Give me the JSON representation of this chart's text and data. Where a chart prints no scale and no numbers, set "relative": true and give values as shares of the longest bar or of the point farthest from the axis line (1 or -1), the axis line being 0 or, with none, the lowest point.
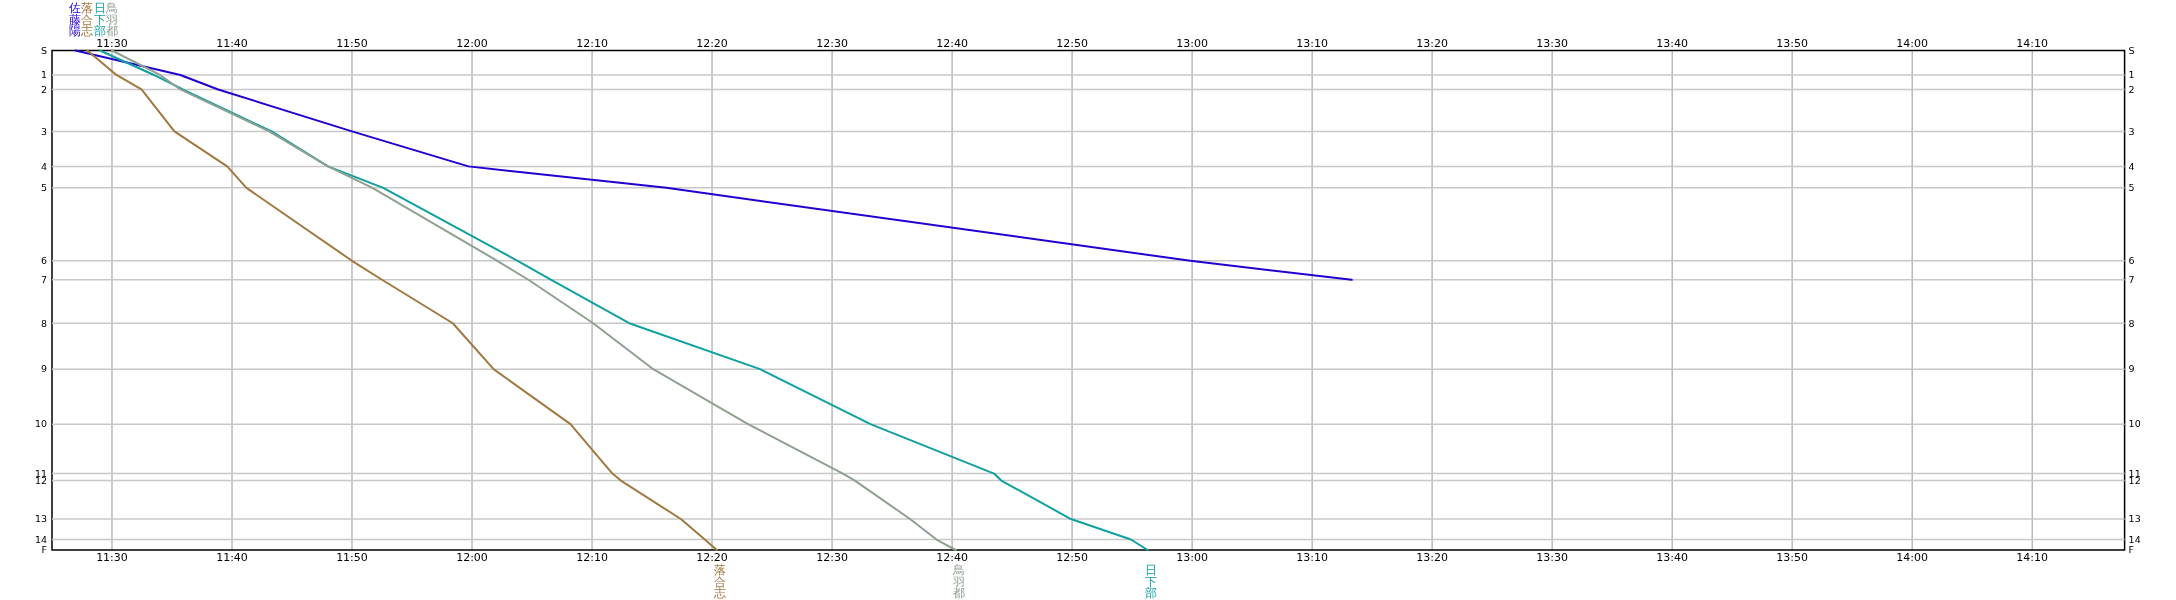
{
  "chart_data": {
    "type": "line",
    "grid": "x",
    "relative": true,
    "line_style": "solid",
    "xlim": [
      11.4167,
      14.295
    ],
    "xticks": [
      {
        "value": 11.5,
        "label": "11:30"
      },
      {
        "value": 11.6667,
        "label": "11:40"
      },
      {
        "value": 11.8333,
        "label": "11:50"
      },
      {
        "value": 12,
        "label": "12:00"
      },
      {
        "value": 12.1667,
        "label": "12:10"
      },
      {
        "value": 12.3333,
        "label": "12:20"
      },
      {
        "value": 12.5,
        "label": "12:30"
      },
      {
        "value": 12.6667,
        "label": "12:40"
      },
      {
        "value": 12.8333,
        "label": "12:50"
      },
      {
        "value": 13,
        "label": "13:00"
      },
      {
        "value": 13.1667,
        "label": "13:10"
      },
      {
        "value": 13.3333,
        "label": "13:20"
      },
      {
        "value": 13.5,
        "label": "13:30"
      },
      {
        "value": 13.6667,
        "label": "13:40"
      },
      {
        "value": 13.8333,
        "label": "13:50"
      },
      {
        "value": 14,
        "label": "14:00"
      },
      {
        "value": 14.1667,
        "label": "14:10"
      }
    ],
    "x2lim": [
      11.4167,
      14.295
    ],
    "x2ticks": [
      {
        "value": 11.5,
        "label": "11:30"
      },
      {
        "value": 11.6667,
        "label": "11:40"
      },
      {
        "value": 11.8333,
        "label": "11:50"
      },
      {
        "value": 12,
        "label": "12:00"
      },
      {
        "value": 12.1667,
        "label": "12:10"
      },
      {
        "value": 12.3333,
        "label": "12:20"
      },
      {
        "value": 12.5,
        "label": "12:30"
      },
      {
        "value": 12.6667,
        "label": "12:40"
      },
      {
        "value": 12.8333,
        "label": "12:50"
      },
      {
        "value": 13,
        "label": "13:00"
      },
      {
        "value": 13.1667,
        "label": "13:10"
      },
      {
        "value": 13.3333,
        "label": "13:20"
      },
      {
        "value": 13.5,
        "label": "13:30"
      },
      {
        "value": 13.6667,
        "label": "13:40"
      },
      {
        "value": 13.8333,
        "label": "13:50"
      },
      {
        "value": 14,
        "label": "14:00"
      },
      {
        "value": 14.1667,
        "label": "14:10"
      }
    ],
    "ref_lines": [
      {
        "axis": "y",
        "value": -0.049,
        "color": "#c8c8c8"
      },
      {
        "axis": "y",
        "value": -0.078,
        "color": "#c8c8c8"
      },
      {
        "axis": "y",
        "value": -0.162,
        "color": "#c8c8c8"
      },
      {
        "axis": "y",
        "value": -0.232,
        "color": "#c8c8c8"
      },
      {
        "axis": "y",
        "value": -0.275,
        "color": "#c8c8c8"
      },
      {
        "axis": "y",
        "value": -0.421,
        "color": "#c8c8c8"
      },
      {
        "axis": "y",
        "value": -0.459,
        "color": "#c8c8c8"
      },
      {
        "axis": "y",
        "value": -0.546,
        "color": "#c8c8c8"
      },
      {
        "axis": "y",
        "value": -0.638,
        "color": "#c8c8c8"
      },
      {
        "axis": "y",
        "value": -0.748,
        "color": "#c8c8c8"
      },
      {
        "axis": "y",
        "value": -0.847,
        "color": "#c8c8c8"
      },
      {
        "axis": "y",
        "value": -0.861,
        "color": "#c8c8c8"
      },
      {
        "axis": "y",
        "value": -0.938,
        "color": "#c8c8c8"
      },
      {
        "axis": "y",
        "value": -0.979,
        "color": "#c8c8c8"
      }
    ],
    "annotations": [
      "S",
      "1",
      "2",
      "3",
      "4",
      "5",
      "6",
      "7",
      "8",
      "9",
      "10",
      "11",
      "12",
      "13",
      "14",
      "F"
    ],
    "series": [
      {
        "name": "佐藤陽",
        "color": "#2000d0",
        "x": [
          11.4492,
          11.595,
          11.6475,
          11.8333,
          11.995,
          12.27,
          12.9975,
          13.2217
        ],
        "values": [
          0,
          -0.049,
          -0.078,
          -0.162,
          -0.232,
          -0.275,
          -0.421,
          -0.459
        ]
      },
      {
        "name": "落合志",
        "color": "#a07840",
        "x": [
          11.4658,
          11.5062,
          11.541,
          11.5867,
          11.66,
          11.6867,
          11.8333,
          11.875,
          11.9733,
          12.03,
          12.1367,
          12.195,
          12.2067,
          12.29,
          12.3233,
          12.34
        ],
        "values": [
          0,
          -0.049,
          -0.078,
          -0.162,
          -0.232,
          -0.275,
          -0.421,
          -0.459,
          -0.546,
          -0.638,
          -0.748,
          -0.847,
          -0.861,
          -0.938,
          -0.979,
          -1
        ]
      },
      {
        "name": "日下部",
        "color": "#10a0a0",
        "x": [
          11.4833,
          11.5583,
          11.5983,
          11.7217,
          11.8,
          11.8767,
          12.0633,
          12.11,
          12.2183,
          12.4,
          12.5533,
          12.725,
          12.735,
          12.8317,
          12.915,
          12.9383
        ],
        "values": [
          0,
          -0.049,
          -0.078,
          -0.162,
          -0.232,
          -0.275,
          -0.421,
          -0.459,
          -0.546,
          -0.638,
          -0.748,
          -0.847,
          -0.861,
          -0.938,
          -0.979,
          -1
        ]
      },
      {
        "name": "鳥羽都",
        "color": "#90a090",
        "x": [
          11.5,
          11.5667,
          11.595,
          11.7183,
          11.8,
          11.8617,
          12.035,
          12.0783,
          12.1683,
          12.2517,
          12.3833,
          12.515,
          12.5317,
          12.6083,
          12.645,
          12.6717
        ],
        "values": [
          0,
          -0.049,
          -0.078,
          -0.162,
          -0.232,
          -0.275,
          -0.421,
          -0.459,
          -0.546,
          -0.638,
          -0.748,
          -0.847,
          -0.861,
          -0.938,
          -0.979,
          -1
        ]
      }
    ]
  }
}
